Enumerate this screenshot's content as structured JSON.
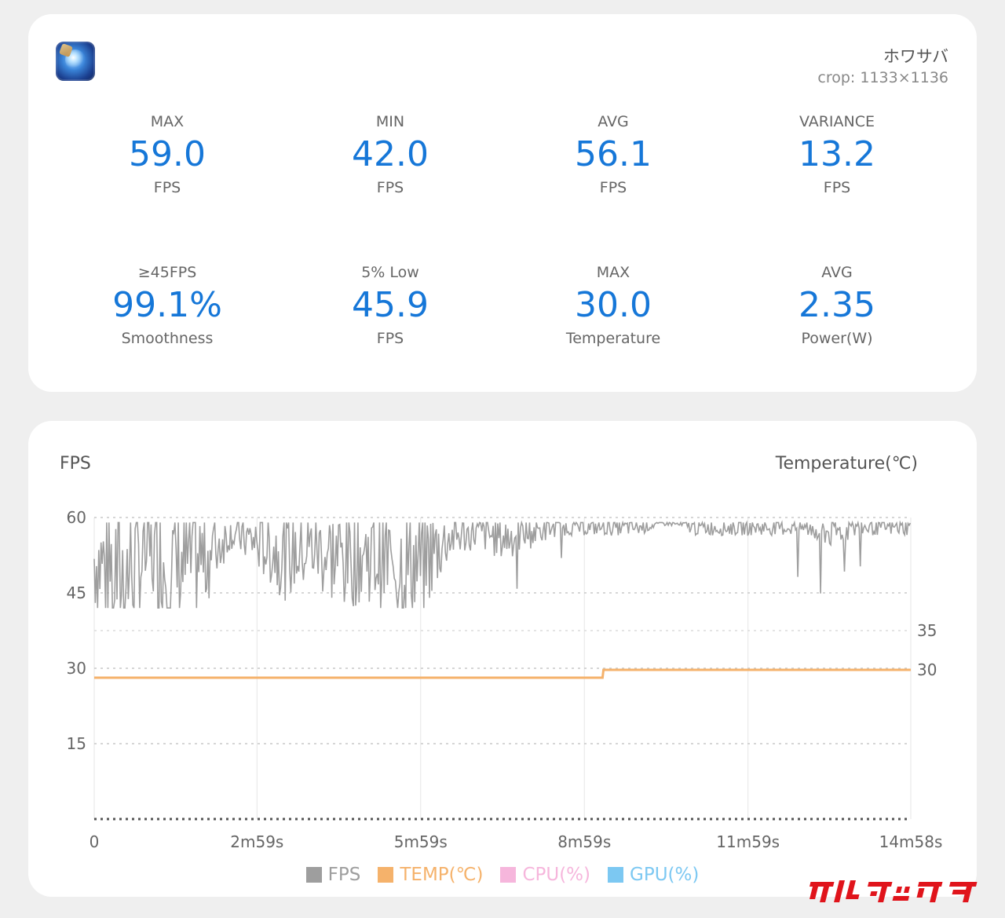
{
  "header": {
    "app_name": "ホワサバ",
    "crop_note": "crop: 1133×1136"
  },
  "stats": [
    {
      "label": "MAX",
      "value": "59.0",
      "unit": "FPS"
    },
    {
      "label": "MIN",
      "value": "42.0",
      "unit": "FPS"
    },
    {
      "label": "AVG",
      "value": "56.1",
      "unit": "FPS"
    },
    {
      "label": "VARIANCE",
      "value": "13.2",
      "unit": "FPS"
    },
    {
      "label": "≥45FPS",
      "value": "99.1%",
      "unit": "Smoothness"
    },
    {
      "label": "5% Low",
      "value": "45.9",
      "unit": "FPS"
    },
    {
      "label": "MAX",
      "value": "30.0",
      "unit": "Temperature"
    },
    {
      "label": "AVG",
      "value": "2.35",
      "unit": "Power(W)"
    }
  ],
  "chart": {
    "left_title": "FPS",
    "right_title": "Temperature(℃)",
    "colors": {
      "fps": "#9e9e9e",
      "temp": "#f5b26b",
      "cpu": "#f6b6dc",
      "gpu": "#7cc8f2",
      "grid": "#c9c9c9"
    }
  },
  "legend": [
    {
      "label": "FPS",
      "color": "#9e9e9e"
    },
    {
      "label": "TEMP(℃)",
      "color": "#f5b26b"
    },
    {
      "label": "CPU(%)",
      "color": "#f6b6dc"
    },
    {
      "label": "GPU(%)",
      "color": "#7cc8f2"
    }
  ],
  "chart_data": {
    "type": "line",
    "title": "",
    "xlabel": "",
    "ylabel": "FPS",
    "y2label": "Temperature(℃)",
    "x_tick_labels": [
      "0",
      "2m59s",
      "5m59s",
      "8m59s",
      "11m59s",
      "14m58s"
    ],
    "y_ticks": [
      60,
      45,
      30,
      15
    ],
    "y2_ticks": [
      35,
      30
    ],
    "ylim": [
      0,
      60
    ],
    "grid": true,
    "legend_position": "bottom",
    "series": [
      {
        "name": "FPS",
        "x_seconds": [
          0,
          30,
          60,
          90,
          120,
          150,
          180,
          210,
          240,
          270,
          300,
          330,
          360,
          390,
          420,
          450,
          480,
          510,
          540,
          570,
          600,
          630,
          660,
          690,
          720,
          750,
          780,
          810,
          840,
          870,
          898
        ],
        "values": [
          52,
          48,
          53,
          50,
          52,
          57,
          55,
          53,
          54,
          52,
          53,
          51,
          51,
          56,
          57,
          56,
          57,
          58,
          58,
          58,
          58,
          59,
          58,
          58,
          58,
          58,
          58,
          57,
          58,
          58,
          58
        ]
      },
      {
        "name": "TEMP(℃)",
        "x_seconds": [
          0,
          559,
          560,
          898
        ],
        "values": [
          29,
          29,
          30,
          30
        ]
      }
    ],
    "extra_legend_series": [
      "CPU(%)",
      "GPU(%)"
    ]
  }
}
